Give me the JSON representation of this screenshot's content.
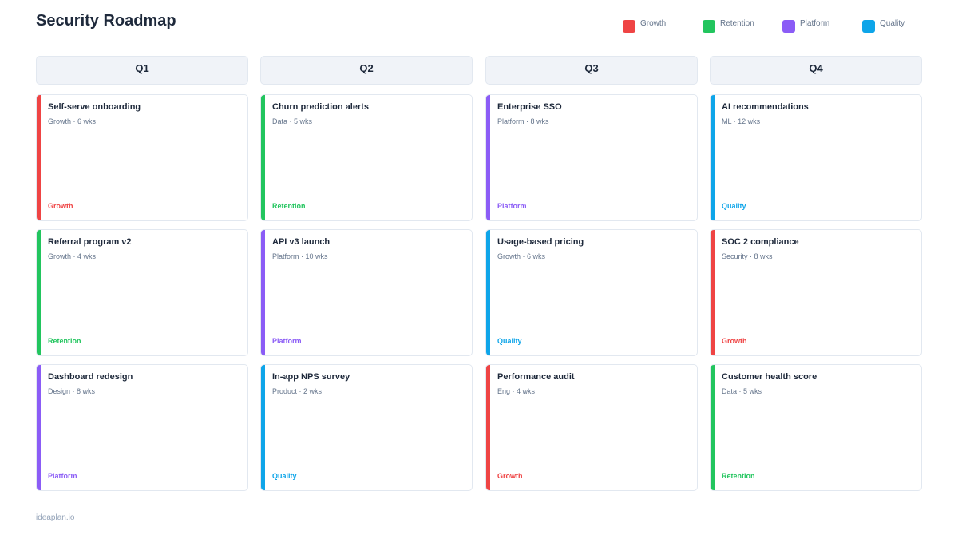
{
  "title": "Security Roadmap",
  "colors": {
    "Growth": "#ef4444",
    "Retention": "#22c55e",
    "Platform": "#8b5cf6",
    "Quality": "#0ea5e9"
  },
  "legend": [
    {
      "label": "Growth",
      "color": "#ef4444"
    },
    {
      "label": "Retention",
      "color": "#22c55e"
    },
    {
      "label": "Platform",
      "color": "#8b5cf6"
    },
    {
      "label": "Quality",
      "color": "#0ea5e9"
    }
  ],
  "columns": [
    {
      "label": "Q1",
      "cards": [
        {
          "title": "Self-serve onboarding",
          "meta": "Growth · 6 wks",
          "tag": "Growth"
        },
        {
          "title": "Referral program v2",
          "meta": "Growth · 4 wks",
          "tag": "Retention"
        },
        {
          "title": "Dashboard redesign",
          "meta": "Design · 8 wks",
          "tag": "Platform"
        }
      ]
    },
    {
      "label": "Q2",
      "cards": [
        {
          "title": "Churn prediction alerts",
          "meta": "Data · 5 wks",
          "tag": "Retention"
        },
        {
          "title": "API v3 launch",
          "meta": "Platform · 10 wks",
          "tag": "Platform"
        },
        {
          "title": "In-app NPS survey",
          "meta": "Product · 2 wks",
          "tag": "Quality"
        }
      ]
    },
    {
      "label": "Q3",
      "cards": [
        {
          "title": "Enterprise SSO",
          "meta": "Platform · 8 wks",
          "tag": "Platform"
        },
        {
          "title": "Usage-based pricing",
          "meta": "Growth · 6 wks",
          "tag": "Quality"
        },
        {
          "title": "Performance audit",
          "meta": "Eng · 4 wks",
          "tag": "Growth"
        }
      ]
    },
    {
      "label": "Q4",
      "cards": [
        {
          "title": "AI recommendations",
          "meta": "ML · 12 wks",
          "tag": "Quality"
        },
        {
          "title": "SOC 2 compliance",
          "meta": "Security · 8 wks",
          "tag": "Growth"
        },
        {
          "title": "Customer health score",
          "meta": "Data · 5 wks",
          "tag": "Retention"
        }
      ]
    }
  ],
  "footer": "ideaplan.io"
}
